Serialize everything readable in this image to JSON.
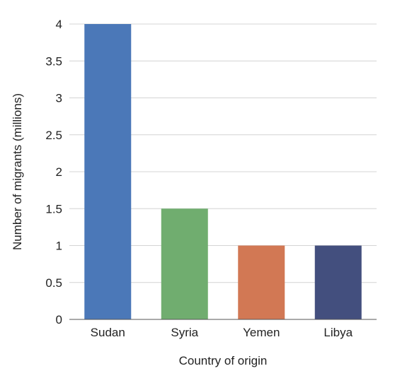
{
  "chart_data": {
    "type": "bar",
    "categories": [
      "Sudan",
      "Syria",
      "Yemen",
      "Libya"
    ],
    "values": [
      4,
      1.5,
      1,
      1
    ],
    "colors": [
      "#4b78b8",
      "#70ad6f",
      "#d27854",
      "#434f7e"
    ],
    "title": "",
    "xlabel": "Country of origin",
    "ylabel": "Number of migrants (millions)",
    "ylim": [
      0,
      4
    ],
    "yticks": [
      0,
      0.5,
      1,
      1.5,
      2,
      2.5,
      3,
      3.5,
      4
    ],
    "grid": true,
    "legend": "none"
  }
}
